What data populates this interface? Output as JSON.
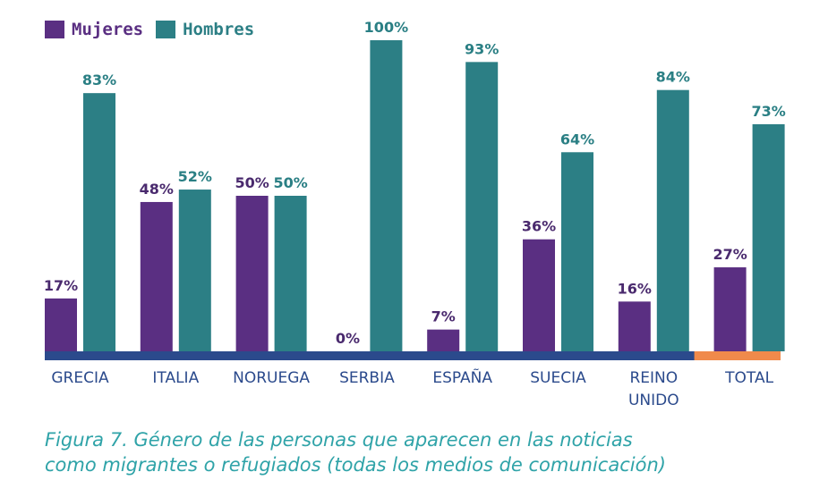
{
  "legend": {
    "items": [
      {
        "label": "Mujeres",
        "color": "#5a2f82"
      },
      {
        "label": "Hombres",
        "color": "#2c7f85"
      }
    ]
  },
  "chart_data": {
    "type": "bar",
    "categories": [
      [
        "GRECIA"
      ],
      [
        "ITALIA"
      ],
      [
        "NORUEGA"
      ],
      [
        "SERBIA"
      ],
      [
        "ESPAÑA"
      ],
      [
        "SUECIA"
      ],
      [
        "REINO",
        "UNIDO"
      ],
      [
        "TOTAL"
      ]
    ],
    "series": [
      {
        "name": "Mujeres",
        "color": "#5a2f82",
        "label_color": "#4a2a6e",
        "values": [
          17,
          48,
          50,
          0,
          7,
          36,
          16,
          27
        ],
        "labels": [
          "17%",
          "48%",
          "50%",
          "0%",
          "7%",
          "36%",
          "16%",
          "27%"
        ]
      },
      {
        "name": "Hombres",
        "color": "#2c7f85",
        "label_color": "#2a7f84",
        "values": [
          83,
          52,
          50,
          100,
          93,
          64,
          84,
          73
        ],
        "labels": [
          "83%",
          "52%",
          "50%",
          "100%",
          "93%",
          "64%",
          "84%",
          "73%"
        ]
      }
    ],
    "ylim": [
      0,
      100
    ],
    "baseline_color": "#2b4a8c",
    "total_baseline_color": "#f08a4b",
    "tick_color": "#2b4a8c"
  },
  "caption": {
    "line1": "Figura 7. Género de las personas que aparecen en las noticias",
    "line2": "como migrantes o refugiados (todas los medios de comunicación)"
  }
}
